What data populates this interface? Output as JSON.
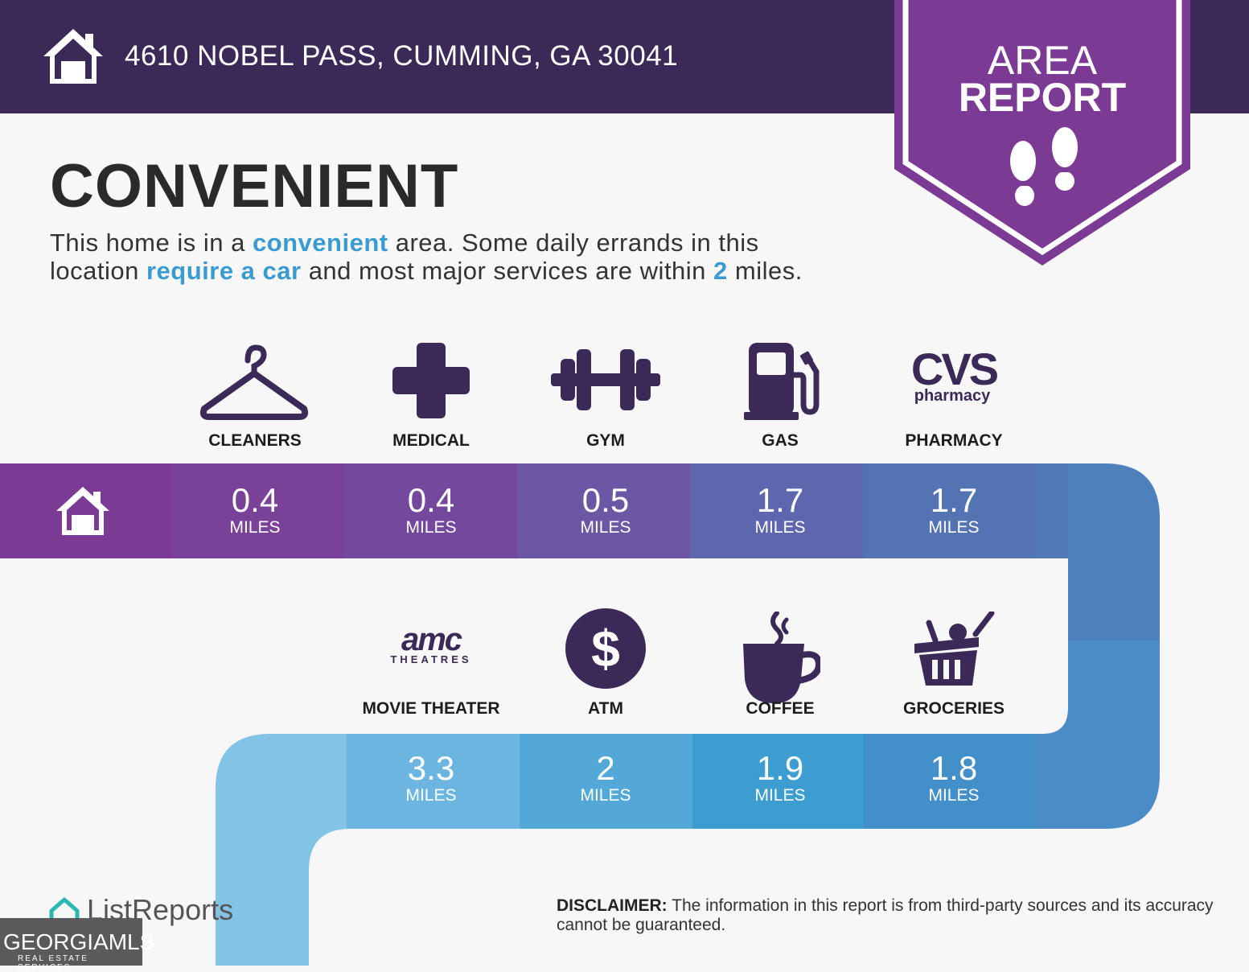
{
  "header": {
    "address": "4610 NOBEL PASS, CUMMING, GA 30041",
    "badge_line1": "AREA",
    "badge_line2": "REPORT"
  },
  "headline": "CONVENIENT",
  "intro": {
    "p1": "This home is in a ",
    "h1": "convenient",
    "p2": " area. Some daily errands in this",
    "p3": "location ",
    "h2": "require a car",
    "p4": " and most major services are within ",
    "h3": "2",
    "p5": " miles."
  },
  "services": [
    {
      "label": "CLEANERS",
      "distance": "0.4",
      "unit": "MILES",
      "icon": "hanger-icon"
    },
    {
      "label": "MEDICAL",
      "distance": "0.4",
      "unit": "MILES",
      "icon": "medical-cross-icon"
    },
    {
      "label": "GYM",
      "distance": "0.5",
      "unit": "MILES",
      "icon": "dumbbell-icon"
    },
    {
      "label": "GAS",
      "distance": "1.7",
      "unit": "MILES",
      "icon": "gas-pump-icon"
    },
    {
      "label": "PHARMACY",
      "distance": "1.7",
      "unit": "MILES",
      "icon": "cvs-pharmacy-logo",
      "logo_text1": "CVS",
      "logo_text2": "pharmacy"
    },
    {
      "label": "MOVIE THEATER",
      "distance": "3.3",
      "unit": "MILES",
      "icon": "amc-theatres-logo",
      "logo_text1": "amc",
      "logo_text2": "THEATRES"
    },
    {
      "label": "ATM",
      "distance": "2",
      "unit": "MILES",
      "icon": "dollar-icon"
    },
    {
      "label": "COFFEE",
      "distance": "1.9",
      "unit": "MILES",
      "icon": "coffee-cup-icon"
    },
    {
      "label": "GROCERIES",
      "distance": "1.8",
      "unit": "MILES",
      "icon": "grocery-basket-icon"
    }
  ],
  "footer": {
    "brand": "ListReports",
    "mls_line1": "GEORGIAMLS",
    "mls_line2": "REAL ESTATE SERVICES",
    "disclaimer_bold": "DISCLAIMER:",
    "disclaimer_text": " The information in this report is from third-party sources and its accuracy cannot be guaranteed."
  },
  "colors": {
    "header": "#3b2a57",
    "badge": "#7b3a93",
    "accent_text": "#3a9bd0",
    "icon": "#3b2a57"
  }
}
